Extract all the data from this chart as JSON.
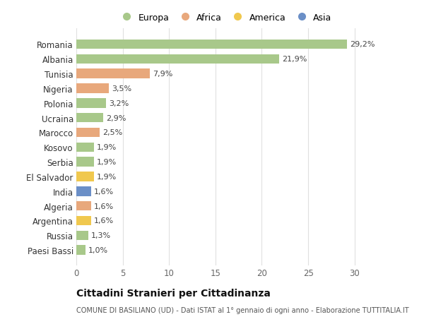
{
  "countries": [
    "Paesi Bassi",
    "Russia",
    "Argentina",
    "Algeria",
    "India",
    "El Salvador",
    "Serbia",
    "Kosovo",
    "Marocco",
    "Ucraina",
    "Polonia",
    "Nigeria",
    "Tunisia",
    "Albania",
    "Romania"
  ],
  "values": [
    1.0,
    1.3,
    1.6,
    1.6,
    1.6,
    1.9,
    1.9,
    1.9,
    2.5,
    2.9,
    3.2,
    3.5,
    7.9,
    21.9,
    29.2
  ],
  "labels": [
    "1,0%",
    "1,3%",
    "1,6%",
    "1,6%",
    "1,6%",
    "1,9%",
    "1,9%",
    "1,9%",
    "2,5%",
    "2,9%",
    "3,2%",
    "3,5%",
    "7,9%",
    "21,9%",
    "29,2%"
  ],
  "continents": [
    "Europa",
    "Europa",
    "America",
    "Africa",
    "Asia",
    "America",
    "Europa",
    "Europa",
    "Africa",
    "Europa",
    "Europa",
    "Africa",
    "Africa",
    "Europa",
    "Europa"
  ],
  "colors": {
    "Europa": "#a8c88a",
    "Africa": "#e8a87c",
    "America": "#f0c84e",
    "Asia": "#6b8fc7"
  },
  "xlim": [
    0,
    32
  ],
  "xticks": [
    0,
    5,
    10,
    15,
    20,
    25,
    30
  ],
  "title": "Cittadini Stranieri per Cittadinanza",
  "subtitle": "COMUNE DI BASILIANO (UD) - Dati ISTAT al 1° gennaio di ogni anno - Elaborazione TUTTITALIA.IT",
  "background_color": "#ffffff",
  "grid_color": "#e0e0e0"
}
